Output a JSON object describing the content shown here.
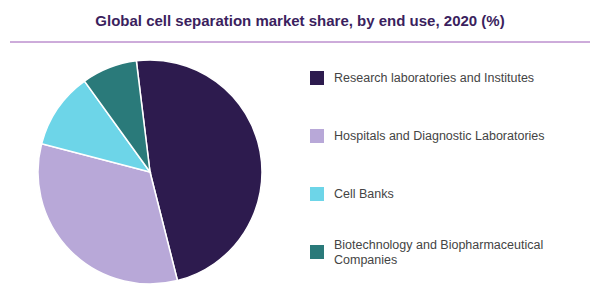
{
  "chart_data": {
    "type": "pie",
    "title": "Global cell separation market share, by end use, 2020 (%)",
    "categories": [
      "Research laboratories and Institutes",
      "Hospitals and Diagnostic Laboratories",
      "Cell Banks",
      "Biotechnology and Biopharmaceutical\nCompanies"
    ],
    "values": [
      48,
      33,
      11,
      8
    ],
    "colors": [
      "#2d1b4e",
      "#b8a8d8",
      "#6dd5e8",
      "#2a7a7a"
    ],
    "legend": "right"
  }
}
